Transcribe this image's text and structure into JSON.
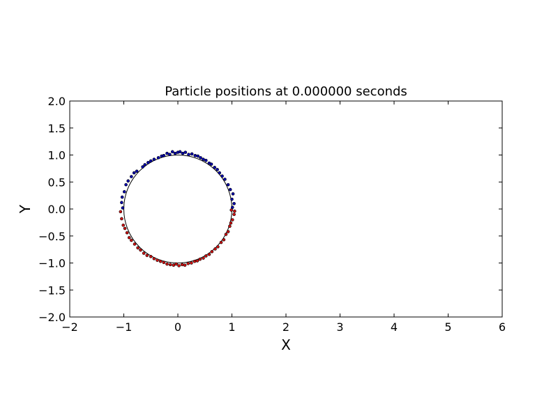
{
  "chart_data": {
    "type": "scatter",
    "title": "Particle positions at 0.000000 seconds",
    "xlabel": "X",
    "ylabel": "Y",
    "xlim": [
      -2,
      6
    ],
    "ylim": [
      -2,
      2
    ],
    "xticks": [
      "−2",
      "−1",
      "0",
      "1",
      "2",
      "3",
      "4",
      "5",
      "6"
    ],
    "yticks": [
      "−2.0",
      "−1.5",
      "−1.0",
      "−0.5",
      "0.0",
      "0.5",
      "1.0",
      "1.5",
      "2.0"
    ],
    "grid": false,
    "reference_circle": {
      "center": [
        0,
        0
      ],
      "radius": 1,
      "color": "#000000"
    },
    "series": [
      {
        "color": "#0000aa",
        "points": [
          [
            -1.02,
            0.02
          ],
          [
            -1.04,
            0.12
          ],
          [
            -1.03,
            0.22
          ],
          [
            -0.99,
            0.32
          ],
          [
            -0.96,
            0.45
          ],
          [
            -0.92,
            0.52
          ],
          [
            -0.86,
            0.6
          ],
          [
            -0.81,
            0.67
          ],
          [
            -0.76,
            0.7
          ],
          [
            -0.65,
            0.78
          ],
          [
            -0.61,
            0.82
          ],
          [
            -0.55,
            0.86
          ],
          [
            -0.5,
            0.89
          ],
          [
            -0.44,
            0.92
          ],
          [
            -0.36,
            0.95
          ],
          [
            -0.3,
            0.98
          ],
          [
            -0.26,
            0.99
          ],
          [
            -0.2,
            1.03
          ],
          [
            -0.15,
            1.01
          ],
          [
            -0.1,
            1.06
          ],
          [
            -0.05,
            1.03
          ],
          [
            0.0,
            1.05
          ],
          [
            0.04,
            1.06
          ],
          [
            0.09,
            1.03
          ],
          [
            0.14,
            1.05
          ],
          [
            0.2,
            1.01
          ],
          [
            0.26,
            1.02
          ],
          [
            0.32,
            0.99
          ],
          [
            0.37,
            0.98
          ],
          [
            0.42,
            0.95
          ],
          [
            0.47,
            0.92
          ],
          [
            0.52,
            0.9
          ],
          [
            0.58,
            0.85
          ],
          [
            0.62,
            0.83
          ],
          [
            0.68,
            0.77
          ],
          [
            0.73,
            0.73
          ],
          [
            0.77,
            0.67
          ],
          [
            0.82,
            0.61
          ],
          [
            0.87,
            0.55
          ],
          [
            0.93,
            0.45
          ],
          [
            0.97,
            0.36
          ],
          [
            1.02,
            0.28
          ],
          [
            1.0,
            0.18
          ],
          [
            1.04,
            0.1
          ],
          [
            1.01,
            0.03
          ]
        ]
      },
      {
        "color": "#cc1111",
        "points": [
          [
            -1.06,
            -0.05
          ],
          [
            -1.04,
            -0.18
          ],
          [
            -1.01,
            -0.3
          ],
          [
            -0.98,
            -0.36
          ],
          [
            -0.94,
            -0.44
          ],
          [
            -0.9,
            -0.53
          ],
          [
            -0.86,
            -0.58
          ],
          [
            -0.8,
            -0.65
          ],
          [
            -0.74,
            -0.72
          ],
          [
            -0.69,
            -0.76
          ],
          [
            -0.63,
            -0.82
          ],
          [
            -0.57,
            -0.86
          ],
          [
            -0.5,
            -0.88
          ],
          [
            -0.44,
            -0.92
          ],
          [
            -0.38,
            -0.95
          ],
          [
            -0.32,
            -0.97
          ],
          [
            -0.26,
            -0.99
          ],
          [
            -0.2,
            -1.02
          ],
          [
            -0.14,
            -1.03
          ],
          [
            -0.08,
            -1.04
          ],
          [
            -0.03,
            -1.02
          ],
          [
            0.02,
            -1.05
          ],
          [
            0.08,
            -1.03
          ],
          [
            0.13,
            -1.04
          ],
          [
            0.19,
            -1.01
          ],
          [
            0.25,
            -1.0
          ],
          [
            0.31,
            -0.97
          ],
          [
            0.36,
            -0.96
          ],
          [
            0.41,
            -0.93
          ],
          [
            0.47,
            -0.91
          ],
          [
            0.52,
            -0.87
          ],
          [
            0.58,
            -0.84
          ],
          [
            0.63,
            -0.79
          ],
          [
            0.69,
            -0.74
          ],
          [
            0.74,
            -0.7
          ],
          [
            0.8,
            -0.62
          ],
          [
            0.85,
            -0.57
          ],
          [
            0.89,
            -0.47
          ],
          [
            0.93,
            -0.42
          ],
          [
            0.96,
            -0.32
          ],
          [
            0.98,
            -0.26
          ],
          [
            1.01,
            -0.2
          ],
          [
            1.04,
            -0.1
          ],
          [
            1.05,
            -0.04
          ],
          [
            0.99,
            -0.02
          ]
        ]
      }
    ]
  }
}
